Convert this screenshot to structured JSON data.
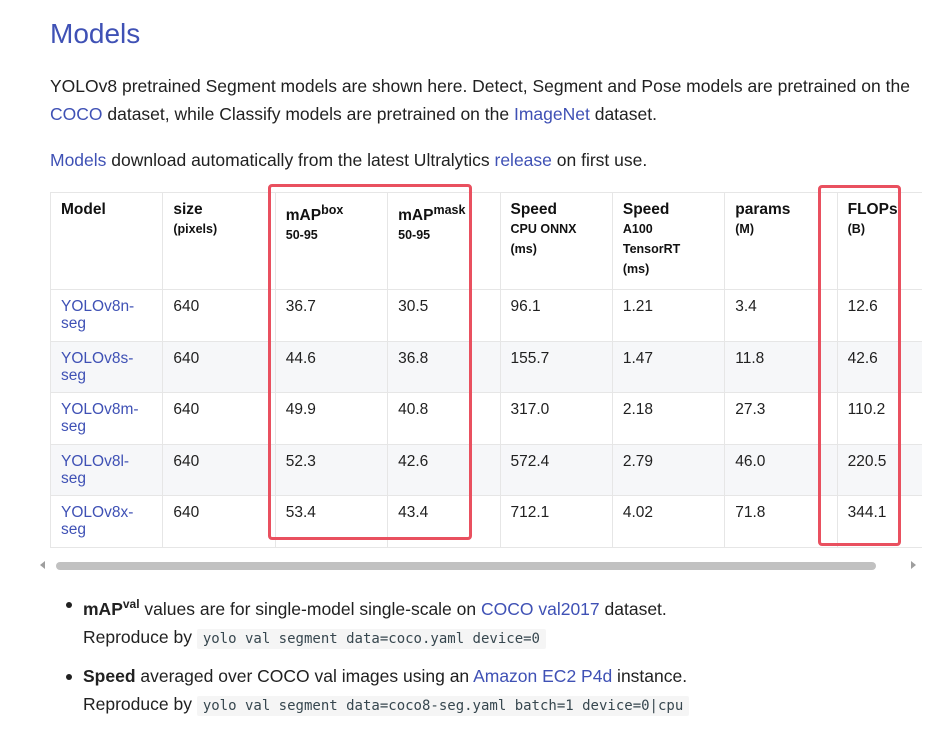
{
  "title": "Models",
  "intro": {
    "p1_a": "YOLOv8 pretrained Segment models are shown here. Detect, Segment and Pose models are pretrained on the ",
    "p1_link1": "COCO",
    "p1_b": " dataset, while Classify models are pretrained on the ",
    "p1_link2": "ImageNet",
    "p1_c": " dataset.",
    "p2_link1": "Models",
    "p2_a": " download automatically from the latest Ultralytics ",
    "p2_link2": "release",
    "p2_b": " on first use."
  },
  "table": {
    "headers": [
      {
        "main": "Model",
        "sup": "",
        "sub": []
      },
      {
        "main": "size",
        "sup": "",
        "sub": [
          "(pixels)"
        ]
      },
      {
        "main": "mAP",
        "sup": "box",
        "sub": [
          "50-95"
        ]
      },
      {
        "main": "mAP",
        "sup": "mask",
        "sub": [
          "50-95"
        ]
      },
      {
        "main": "Speed",
        "sup": "",
        "sub": [
          "CPU ONNX",
          "(ms)"
        ]
      },
      {
        "main": "Speed",
        "sup": "",
        "sub": [
          "A100",
          "TensorRT",
          "(ms)"
        ]
      },
      {
        "main": "params",
        "sup": "",
        "sub": [
          "(M)"
        ]
      },
      {
        "main": "FLOPs",
        "sup": "",
        "sub": [
          "(B)"
        ]
      }
    ],
    "rows": [
      {
        "model": "YOLOv8n-seg",
        "size": "640",
        "map_box": "36.7",
        "map_mask": "30.5",
        "speed_cpu": "96.1",
        "speed_a100": "1.21",
        "params": "3.4",
        "flops": "12.6"
      },
      {
        "model": "YOLOv8s-seg",
        "size": "640",
        "map_box": "44.6",
        "map_mask": "36.8",
        "speed_cpu": "155.7",
        "speed_a100": "1.47",
        "params": "11.8",
        "flops": "42.6"
      },
      {
        "model": "YOLOv8m-seg",
        "size": "640",
        "map_box": "49.9",
        "map_mask": "40.8",
        "speed_cpu": "317.0",
        "speed_a100": "2.18",
        "params": "27.3",
        "flops": "110.2"
      },
      {
        "model": "YOLOv8l-seg",
        "size": "640",
        "map_box": "52.3",
        "map_mask": "42.6",
        "speed_cpu": "572.4",
        "speed_a100": "2.79",
        "params": "46.0",
        "flops": "220.5"
      },
      {
        "model": "YOLOv8x-seg",
        "size": "640",
        "map_box": "53.4",
        "map_mask": "43.4",
        "speed_cpu": "712.1",
        "speed_a100": "4.02",
        "params": "71.8",
        "flops": "344.1"
      }
    ]
  },
  "notes": [
    {
      "bold": "mAP",
      "bold_sup": "val",
      "text_a": " values are for single-model single-scale on ",
      "link": "COCO val2017",
      "text_b": " dataset.",
      "repro_label": "Reproduce by ",
      "code": "yolo val segment data=coco.yaml device=0"
    },
    {
      "bold": "Speed",
      "bold_sup": "",
      "text_a": " averaged over COCO val images using an ",
      "link": "Amazon EC2 P4d",
      "text_b": " instance.",
      "repro_label": "Reproduce by ",
      "code": "yolo val segment data=coco8-seg.yaml batch=1 device=0|cpu"
    }
  ],
  "colors": {
    "link": "#3f51b5",
    "highlight": "#e9505f",
    "row_alt": "#f6f7f9"
  }
}
